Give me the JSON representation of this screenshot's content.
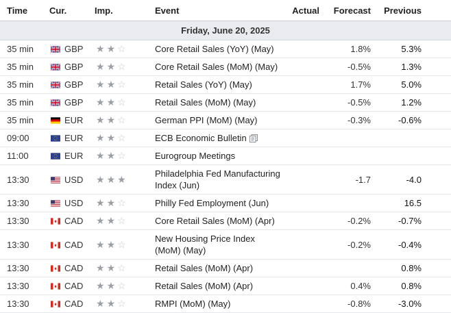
{
  "headers": {
    "time": "Time",
    "currency": "Cur.",
    "importance": "Imp.",
    "event": "Event",
    "actual": "Actual",
    "forecast": "Forecast",
    "previous": "Previous"
  },
  "date_label": "Friday, June 20, 2025",
  "rows": [
    {
      "time": "35 min",
      "flag": "flag-gb",
      "currency": "GBP",
      "stars": 2,
      "event": "Core Retail Sales (YoY) (May)",
      "actual": "",
      "forecast": "1.8%",
      "previous": "5.3%"
    },
    {
      "time": "35 min",
      "flag": "flag-gb",
      "currency": "GBP",
      "stars": 2,
      "event": "Core Retail Sales (MoM) (May)",
      "actual": "",
      "forecast": "-0.5%",
      "previous": "1.3%"
    },
    {
      "time": "35 min",
      "flag": "flag-gb",
      "currency": "GBP",
      "stars": 2,
      "event": "Retail Sales (YoY) (May)",
      "actual": "",
      "forecast": "1.7%",
      "previous": "5.0%"
    },
    {
      "time": "35 min",
      "flag": "flag-gb",
      "currency": "GBP",
      "stars": 2,
      "event": "Retail Sales (MoM) (May)",
      "actual": "",
      "forecast": "-0.5%",
      "previous": "1.2%"
    },
    {
      "time": "35 min",
      "flag": "flag-de",
      "currency": "EUR",
      "stars": 2,
      "event": "German PPI (MoM) (May)",
      "actual": "",
      "forecast": "-0.3%",
      "previous": "-0.6%"
    },
    {
      "time": "09:00",
      "flag": "flag-eu",
      "currency": "EUR",
      "stars": 2,
      "event": "ECB Economic Bulletin",
      "doc_icon": true,
      "actual": "",
      "forecast": "",
      "previous": ""
    },
    {
      "time": "11:00",
      "flag": "flag-eu",
      "currency": "EUR",
      "stars": 2,
      "event": "Eurogroup Meetings",
      "actual": "",
      "forecast": "",
      "previous": ""
    },
    {
      "time": "13:30",
      "flag": "flag-us",
      "currency": "USD",
      "stars": 3,
      "event": "Philadelphia Fed Manufacturing Index (Jun)",
      "actual": "",
      "forecast": "-1.7",
      "previous": "-4.0",
      "tall": true
    },
    {
      "time": "13:30",
      "flag": "flag-us",
      "currency": "USD",
      "stars": 2,
      "event": "Philly Fed Employment (Jun)",
      "actual": "",
      "forecast": "",
      "previous": "16.5"
    },
    {
      "time": "13:30",
      "flag": "flag-ca",
      "currency": "CAD",
      "stars": 2,
      "event": "Core Retail Sales (MoM) (Apr)",
      "actual": "",
      "forecast": "-0.2%",
      "previous": "-0.7%"
    },
    {
      "time": "13:30",
      "flag": "flag-ca",
      "currency": "CAD",
      "stars": 2,
      "event": "New Housing Price Index (MoM) (May)",
      "actual": "",
      "forecast": "-0.2%",
      "previous": "-0.4%",
      "tall": true
    },
    {
      "time": "13:30",
      "flag": "flag-ca",
      "currency": "CAD",
      "stars": 2,
      "event": "Retail Sales (MoM) (Apr)",
      "actual": "",
      "forecast": "",
      "previous": "0.8%"
    },
    {
      "time": "13:30",
      "flag": "flag-ca",
      "currency": "CAD",
      "stars": 2,
      "event": "Retail Sales (MoM) (Apr)",
      "actual": "",
      "forecast": "0.4%",
      "previous": "0.8%"
    },
    {
      "time": "13:30",
      "flag": "flag-ca",
      "currency": "CAD",
      "stars": 2,
      "event": "RMPI (MoM) (May)",
      "actual": "",
      "forecast": "-0.8%",
      "previous": "-3.0%"
    }
  ]
}
